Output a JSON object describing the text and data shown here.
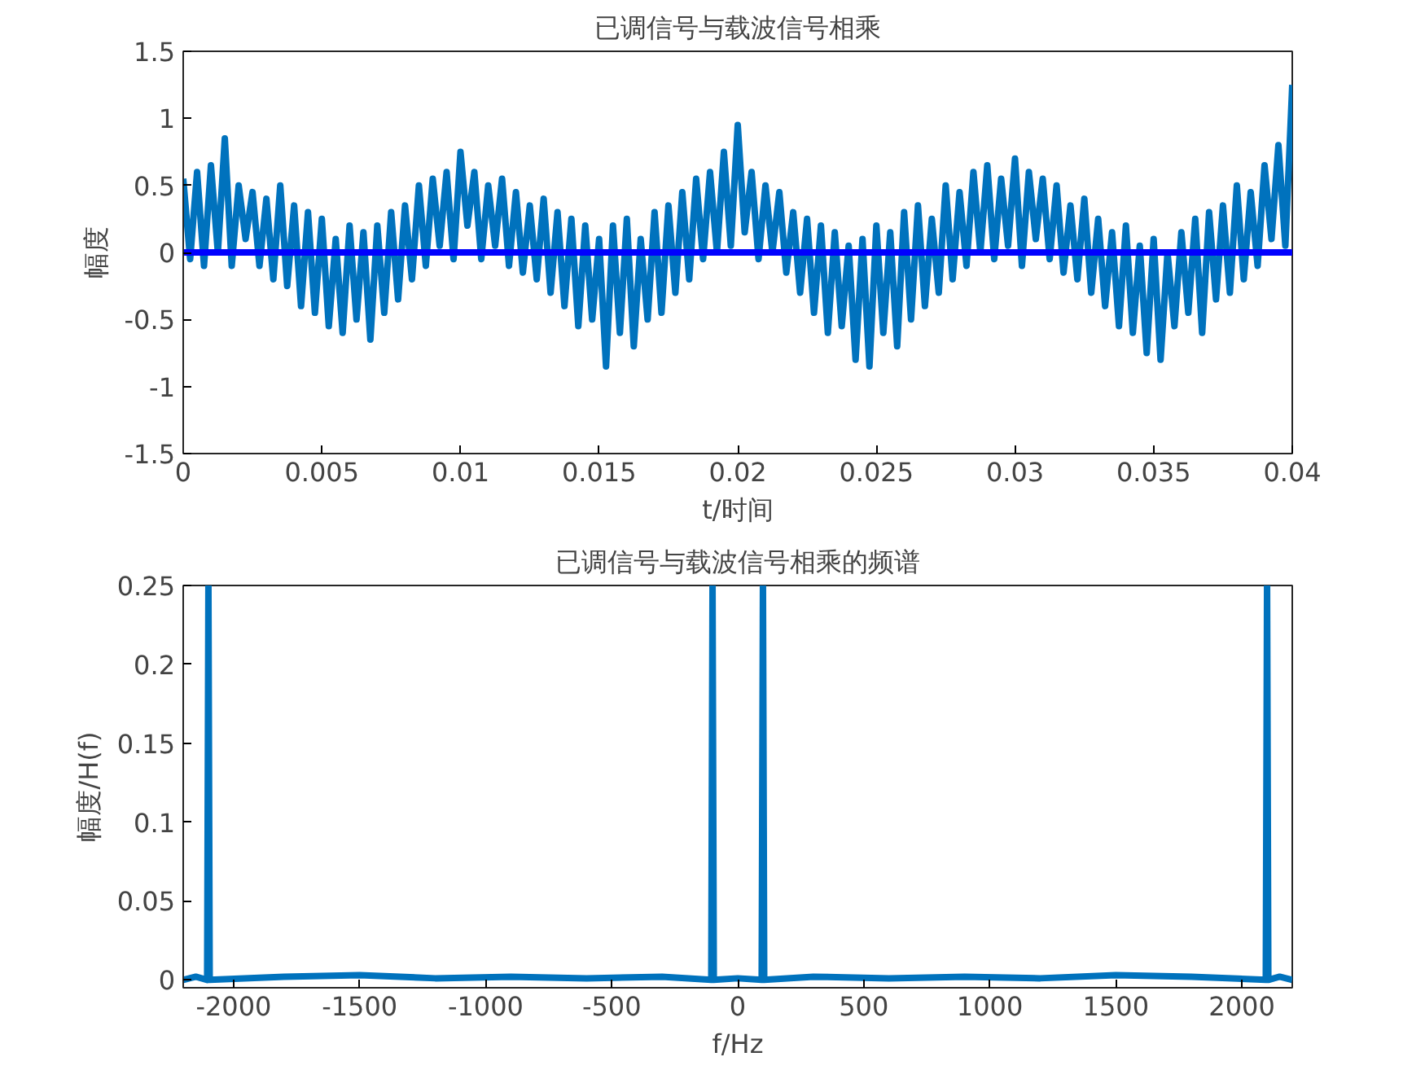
{
  "chart_data": [
    {
      "type": "line",
      "title": "已调信号与载波信号相乘",
      "xlabel": "t/时间",
      "ylabel": "幅度",
      "xlim": [
        0,
        0.04
      ],
      "xticks": [
        0,
        0.005,
        0.01,
        0.015,
        0.02,
        0.025,
        0.03,
        0.035,
        0.04
      ],
      "ylim": [
        -1.5,
        1.5
      ],
      "yticks": [
        -1.5,
        -1,
        -0.5,
        0,
        0.5,
        1,
        1.5
      ],
      "series": [
        {
          "color": "#0072bd",
          "x": [
            0,
            0.00025,
            0.0005,
            0.00075,
            0.001,
            0.00125,
            0.0015,
            0.00175,
            0.002,
            0.00225,
            0.0025,
            0.00275,
            0.003,
            0.00325,
            0.0035,
            0.00375,
            0.004,
            0.00425,
            0.0045,
            0.00475,
            0.005,
            0.00525,
            0.0055,
            0.00575,
            0.006,
            0.00625,
            0.0065,
            0.00675,
            0.007,
            0.00725,
            0.0075,
            0.00775,
            0.008,
            0.00825,
            0.0085,
            0.00875,
            0.009,
            0.00925,
            0.0095,
            0.00975,
            0.01,
            0.01025,
            0.0105,
            0.01075,
            0.011,
            0.01125,
            0.0115,
            0.01175,
            0.012,
            0.01225,
            0.0125,
            0.01275,
            0.013,
            0.01325,
            0.0135,
            0.01375,
            0.014,
            0.01425,
            0.0145,
            0.01475,
            0.015,
            0.01525,
            0.0155,
            0.01575,
            0.016,
            0.01625,
            0.0165,
            0.01675,
            0.017,
            0.01725,
            0.0175,
            0.01775,
            0.018,
            0.01825,
            0.0185,
            0.01875,
            0.019,
            0.01925,
            0.0195,
            0.01975,
            0.02,
            0.02025,
            0.0205,
            0.02075,
            0.021,
            0.02125,
            0.0215,
            0.02175,
            0.022,
            0.02225,
            0.0225,
            0.02275,
            0.023,
            0.02325,
            0.0235,
            0.02375,
            0.024,
            0.02425,
            0.0245,
            0.02475,
            0.025,
            0.02525,
            0.0255,
            0.02575,
            0.026,
            0.02625,
            0.0265,
            0.02675,
            0.027,
            0.02725,
            0.0275,
            0.02775,
            0.028,
            0.02825,
            0.0285,
            0.02875,
            0.029,
            0.02925,
            0.0295,
            0.02975,
            0.03,
            0.03025,
            0.0305,
            0.03075,
            0.031,
            0.03125,
            0.0315,
            0.03175,
            0.032,
            0.03225,
            0.0325,
            0.03275,
            0.033,
            0.03325,
            0.0335,
            0.03375,
            0.034,
            0.03425,
            0.0345,
            0.03475,
            0.035,
            0.03525,
            0.0355,
            0.03575,
            0.036,
            0.03625,
            0.0365,
            0.03675,
            0.037,
            0.03725,
            0.0375,
            0.03775,
            0.038,
            0.03825,
            0.0385,
            0.03875,
            0.039,
            0.03925,
            0.0395,
            0.03975,
            0.04
          ],
          "values": [
            0.55,
            -0.05,
            0.6,
            -0.1,
            0.65,
            0.0,
            0.85,
            -0.1,
            0.5,
            0.1,
            0.45,
            -0.1,
            0.4,
            -0.2,
            0.5,
            -0.25,
            0.35,
            -0.4,
            0.3,
            -0.45,
            0.25,
            -0.55,
            0.1,
            -0.6,
            0.2,
            -0.5,
            0.15,
            -0.65,
            0.2,
            -0.45,
            0.3,
            -0.35,
            0.35,
            -0.2,
            0.5,
            -0.1,
            0.55,
            0.05,
            0.6,
            -0.05,
            0.75,
            0.2,
            0.6,
            -0.05,
            0.5,
            0.05,
            0.55,
            -0.1,
            0.45,
            -0.15,
            0.35,
            -0.2,
            0.4,
            -0.3,
            0.3,
            -0.4,
            0.25,
            -0.55,
            0.2,
            -0.5,
            0.1,
            -0.85,
            0.2,
            -0.6,
            0.25,
            -0.7,
            0.1,
            -0.5,
            0.3,
            -0.45,
            0.35,
            -0.3,
            0.45,
            -0.2,
            0.55,
            -0.05,
            0.6,
            0.0,
            0.75,
            0.05,
            0.95,
            0.15,
            0.6,
            -0.05,
            0.5,
            0.0,
            0.45,
            -0.15,
            0.3,
            -0.3,
            0.25,
            -0.45,
            0.2,
            -0.6,
            0.15,
            -0.55,
            0.05,
            -0.8,
            0.1,
            -0.85,
            0.2,
            -0.6,
            0.15,
            -0.7,
            0.3,
            -0.5,
            0.35,
            -0.4,
            0.25,
            -0.3,
            0.5,
            -0.2,
            0.45,
            -0.1,
            0.6,
            0.0,
            0.65,
            -0.05,
            0.55,
            0.05,
            0.7,
            -0.1,
            0.6,
            0.1,
            0.55,
            -0.05,
            0.5,
            -0.15,
            0.35,
            -0.2,
            0.4,
            -0.3,
            0.25,
            -0.4,
            0.15,
            -0.55,
            0.2,
            -0.6,
            0.05,
            -0.75,
            0.1,
            -0.8,
            0.0,
            -0.55,
            0.15,
            -0.45,
            0.25,
            -0.6,
            0.3,
            -0.35,
            0.35,
            -0.3,
            0.5,
            -0.2,
            0.45,
            -0.1,
            0.65,
            0.1,
            0.8,
            0.05,
            1.25
          ]
        },
        {
          "color": "#0000ff",
          "x": [
            0,
            0.04
          ],
          "values": [
            0,
            0
          ]
        }
      ]
    },
    {
      "type": "line",
      "title": "已调信号与载波信号相乘的频谱",
      "xlabel": "f/Hz",
      "ylabel": "幅度/H(f)",
      "xlim": [
        -2200,
        2200
      ],
      "xticks": [
        -2000,
        -1500,
        -1000,
        -500,
        0,
        500,
        1000,
        1500,
        2000
      ],
      "ylim": [
        -0.005,
        0.25
      ],
      "yticks": [
        0,
        0.05,
        0.1,
        0.15,
        0.2,
        0.25
      ],
      "series": [
        {
          "color": "#0072bd",
          "x": [
            -2200,
            -2150,
            -2105,
            -2100,
            -2095,
            -1800,
            -1500,
            -1200,
            -900,
            -600,
            -300,
            -105,
            -100,
            -95,
            0,
            95,
            100,
            105,
            300,
            600,
            900,
            1200,
            1500,
            1800,
            2095,
            2100,
            2105,
            2150,
            2200
          ],
          "values": [
            0,
            0.002,
            0,
            0.25,
            0,
            0.002,
            0.003,
            0.001,
            0.002,
            0.001,
            0.002,
            0,
            0.25,
            0,
            0.001,
            0,
            0.25,
            0,
            0.002,
            0.001,
            0.002,
            0.001,
            0.003,
            0.002,
            0,
            0.25,
            0,
            0.002,
            0
          ]
        }
      ]
    }
  ]
}
